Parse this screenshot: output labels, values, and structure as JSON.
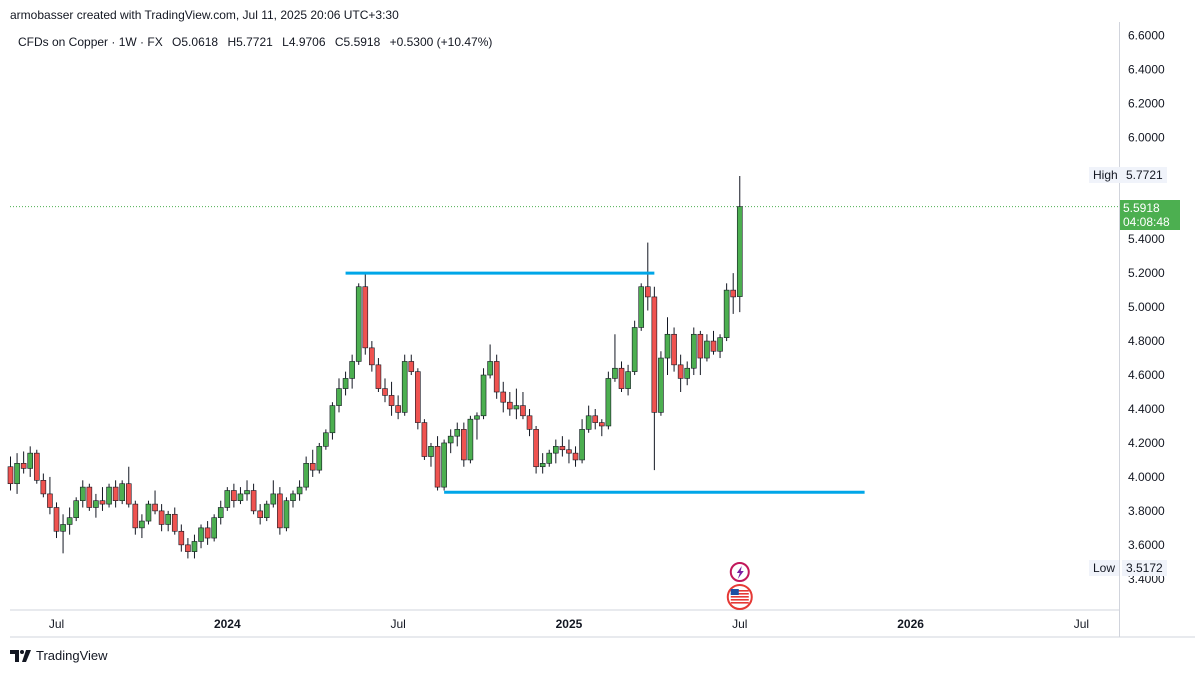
{
  "header": {
    "caption": "armobasser created with TradingView.com, Jul 11, 2025 20:06 UTC+3:30"
  },
  "legend": {
    "symbol": "CFDs on Copper · 1W · FX",
    "open": "O5.0618",
    "high": "H5.7721",
    "low": "L4.9706",
    "close": "C5.5918",
    "change": "+0.5300 (+10.47%)"
  },
  "price_tag": {
    "price": "5.5918",
    "countdown": "04:08:48"
  },
  "high_marker": {
    "label": "High",
    "value": "5.7721"
  },
  "low_marker": {
    "label": "Low",
    "value": "3.5172"
  },
  "footer": {
    "brand": "TradingView"
  },
  "colors": {
    "up": "#4caf50",
    "down": "#ef5350",
    "level_line": "#00a6e8",
    "price_line": "#4caf50"
  },
  "chart_data": {
    "type": "candlestick",
    "timeframe": "1W",
    "y_ticks": [
      "6.6000",
      "6.4000",
      "6.2000",
      "6.0000",
      "5.4000",
      "5.2000",
      "5.0000",
      "4.8000",
      "4.6000",
      "4.4000",
      "4.2000",
      "4.0000",
      "3.8000",
      "3.6000",
      "3.4000"
    ],
    "ylim": [
      3.3,
      6.65
    ],
    "x_ticks": [
      {
        "label": "Jul",
        "index": 7
      },
      {
        "label": "2024",
        "index": 33
      },
      {
        "label": "Jul",
        "index": 59
      },
      {
        "label": "2025",
        "index": 85
      },
      {
        "label": "Jul",
        "index": 111
      },
      {
        "label": "2026",
        "index": 137
      },
      {
        "label": "Jul",
        "index": 163
      }
    ],
    "candles": [
      [
        4.06,
        4.12,
        3.92,
        3.96
      ],
      [
        3.96,
        4.14,
        3.9,
        4.08
      ],
      [
        4.08,
        4.15,
        4.02,
        4.05
      ],
      [
        4.05,
        4.18,
        4.0,
        4.14
      ],
      [
        4.14,
        4.16,
        3.96,
        3.98
      ],
      [
        3.98,
        4.02,
        3.88,
        3.9
      ],
      [
        3.9,
        4.0,
        3.78,
        3.82
      ],
      [
        3.82,
        3.85,
        3.64,
        3.68
      ],
      [
        3.68,
        3.78,
        3.55,
        3.72
      ],
      [
        3.72,
        3.82,
        3.66,
        3.76
      ],
      [
        3.76,
        3.88,
        3.74,
        3.86
      ],
      [
        3.86,
        3.98,
        3.82,
        3.94
      ],
      [
        3.94,
        3.96,
        3.8,
        3.82
      ],
      [
        3.82,
        3.9,
        3.76,
        3.86
      ],
      [
        3.86,
        3.94,
        3.8,
        3.84
      ],
      [
        3.84,
        3.96,
        3.82,
        3.94
      ],
      [
        3.94,
        3.98,
        3.82,
        3.86
      ],
      [
        3.86,
        3.98,
        3.84,
        3.96
      ],
      [
        3.96,
        4.06,
        3.82,
        3.84
      ],
      [
        3.84,
        3.86,
        3.66,
        3.7
      ],
      [
        3.7,
        3.78,
        3.64,
        3.74
      ],
      [
        3.74,
        3.86,
        3.72,
        3.84
      ],
      [
        3.84,
        3.92,
        3.78,
        3.8
      ],
      [
        3.8,
        3.84,
        3.68,
        3.72
      ],
      [
        3.72,
        3.8,
        3.68,
        3.78
      ],
      [
        3.78,
        3.82,
        3.66,
        3.68
      ],
      [
        3.68,
        3.72,
        3.56,
        3.6
      ],
      [
        3.6,
        3.64,
        3.52,
        3.56
      ],
      [
        3.56,
        3.66,
        3.52,
        3.62
      ],
      [
        3.62,
        3.72,
        3.58,
        3.7
      ],
      [
        3.7,
        3.74,
        3.6,
        3.64
      ],
      [
        3.64,
        3.78,
        3.62,
        3.76
      ],
      [
        3.76,
        3.86,
        3.72,
        3.82
      ],
      [
        3.82,
        3.94,
        3.8,
        3.92
      ],
      [
        3.92,
        3.96,
        3.82,
        3.86
      ],
      [
        3.86,
        3.94,
        3.84,
        3.9
      ],
      [
        3.9,
        3.98,
        3.86,
        3.92
      ],
      [
        3.92,
        3.96,
        3.78,
        3.8
      ],
      [
        3.8,
        3.84,
        3.72,
        3.76
      ],
      [
        3.76,
        3.86,
        3.74,
        3.84
      ],
      [
        3.84,
        3.98,
        3.82,
        3.9
      ],
      [
        3.9,
        3.94,
        3.66,
        3.7
      ],
      [
        3.7,
        3.88,
        3.68,
        3.86
      ],
      [
        3.86,
        3.92,
        3.82,
        3.9
      ],
      [
        3.9,
        3.98,
        3.86,
        3.94
      ],
      [
        3.94,
        4.12,
        3.92,
        4.08
      ],
      [
        4.08,
        4.16,
        4.0,
        4.04
      ],
      [
        4.04,
        4.2,
        4.02,
        4.18
      ],
      [
        4.18,
        4.28,
        4.16,
        4.26
      ],
      [
        4.26,
        4.44,
        4.22,
        4.42
      ],
      [
        4.42,
        4.58,
        4.38,
        4.52
      ],
      [
        4.52,
        4.62,
        4.48,
        4.58
      ],
      [
        4.58,
        4.72,
        4.52,
        4.68
      ],
      [
        4.68,
        5.14,
        4.66,
        5.12
      ],
      [
        5.12,
        5.2,
        4.72,
        4.76
      ],
      [
        4.76,
        4.8,
        4.62,
        4.66
      ],
      [
        4.66,
        4.7,
        4.5,
        4.52
      ],
      [
        4.52,
        4.58,
        4.44,
        4.48
      ],
      [
        4.48,
        4.56,
        4.36,
        4.42
      ],
      [
        4.42,
        4.48,
        4.34,
        4.38
      ],
      [
        4.38,
        4.72,
        4.36,
        4.68
      ],
      [
        4.68,
        4.72,
        4.6,
        4.62
      ],
      [
        4.62,
        4.64,
        4.28,
        4.32
      ],
      [
        4.32,
        4.34,
        4.1,
        4.12
      ],
      [
        4.12,
        4.2,
        4.06,
        4.18
      ],
      [
        4.18,
        4.24,
        3.92,
        3.94
      ],
      [
        3.94,
        4.22,
        3.92,
        4.2
      ],
      [
        4.2,
        4.28,
        4.14,
        4.24
      ],
      [
        4.24,
        4.32,
        4.18,
        4.28
      ],
      [
        4.28,
        4.32,
        4.06,
        4.1
      ],
      [
        4.1,
        4.36,
        4.08,
        4.34
      ],
      [
        4.34,
        4.38,
        4.22,
        4.36
      ],
      [
        4.36,
        4.64,
        4.34,
        4.6
      ],
      [
        4.6,
        4.78,
        4.58,
        4.68
      ],
      [
        4.68,
        4.72,
        4.46,
        4.5
      ],
      [
        4.5,
        4.56,
        4.38,
        4.44
      ],
      [
        4.44,
        4.5,
        4.36,
        4.4
      ],
      [
        4.4,
        4.52,
        4.34,
        4.42
      ],
      [
        4.42,
        4.5,
        4.34,
        4.36
      ],
      [
        4.36,
        4.4,
        4.24,
        4.28
      ],
      [
        4.28,
        4.3,
        4.02,
        4.06
      ],
      [
        4.06,
        4.14,
        4.02,
        4.08
      ],
      [
        4.08,
        4.16,
        4.06,
        4.14
      ],
      [
        4.14,
        4.22,
        4.08,
        4.18
      ],
      [
        4.18,
        4.24,
        4.12,
        4.16
      ],
      [
        4.16,
        4.22,
        4.08,
        4.14
      ],
      [
        4.14,
        4.18,
        4.06,
        4.1
      ],
      [
        4.1,
        4.34,
        4.08,
        4.28
      ],
      [
        4.28,
        4.42,
        4.26,
        4.36
      ],
      [
        4.36,
        4.4,
        4.28,
        4.32
      ],
      [
        4.32,
        4.34,
        4.24,
        4.3
      ],
      [
        4.3,
        4.62,
        4.28,
        4.58
      ],
      [
        4.58,
        4.84,
        4.56,
        4.64
      ],
      [
        4.64,
        4.68,
        4.5,
        4.52
      ],
      [
        4.52,
        4.66,
        4.48,
        4.62
      ],
      [
        4.62,
        4.92,
        4.6,
        4.88
      ],
      [
        4.88,
        5.14,
        4.86,
        5.12
      ],
      [
        5.12,
        5.38,
        4.98,
        5.06
      ],
      [
        5.06,
        5.12,
        4.04,
        4.38
      ],
      [
        4.38,
        4.74,
        4.36,
        4.7
      ],
      [
        4.7,
        4.94,
        4.6,
        4.84
      ],
      [
        4.84,
        4.88,
        4.62,
        4.66
      ],
      [
        4.66,
        4.72,
        4.5,
        4.58
      ],
      [
        4.58,
        4.68,
        4.54,
        4.64
      ],
      [
        4.64,
        4.88,
        4.6,
        4.84
      ],
      [
        4.84,
        4.86,
        4.6,
        4.7
      ],
      [
        4.7,
        4.84,
        4.68,
        4.8
      ],
      [
        4.8,
        4.86,
        4.72,
        4.74
      ],
      [
        4.74,
        4.84,
        4.7,
        4.82
      ],
      [
        4.82,
        5.14,
        4.8,
        5.1
      ],
      [
        5.1,
        5.2,
        4.96,
        5.06
      ],
      [
        5.0618,
        5.7721,
        4.9706,
        5.5918
      ]
    ],
    "annotations": [
      {
        "type": "horizontal_segment",
        "y": 5.2,
        "from_index": 51,
        "to_index": 98
      },
      {
        "type": "horizontal_segment",
        "y": 3.91,
        "from_index": 66,
        "to_index": 130
      }
    ],
    "last_price": 5.5918,
    "series_high": 5.7721,
    "series_low": 3.5172,
    "grid": false
  }
}
